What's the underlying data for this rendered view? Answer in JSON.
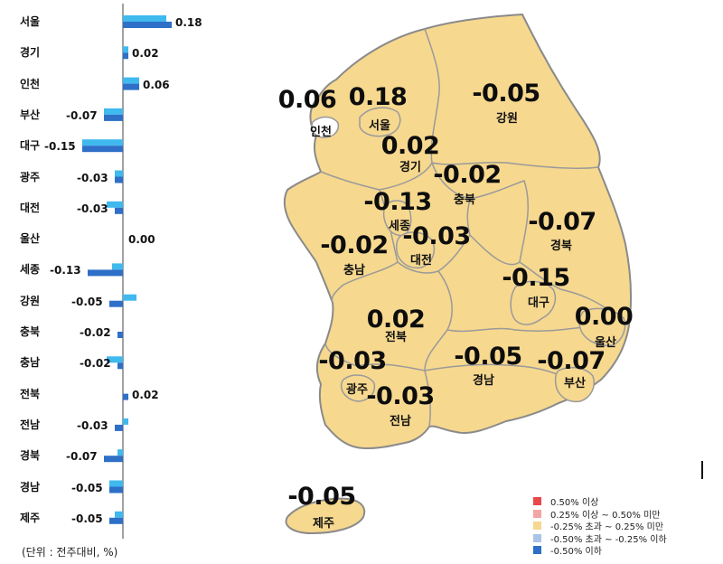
{
  "chart_data": [
    {
      "type": "bar",
      "orientation": "horizontal",
      "categories": [
        "서울",
        "경기",
        "인천",
        "부산",
        "대구",
        "광주",
        "대전",
        "울산",
        "세종",
        "강원",
        "충북",
        "충남",
        "전북",
        "전남",
        "경북",
        "경남",
        "제주"
      ],
      "series": [
        {
          "values": [
            0.16,
            0.02,
            0.06,
            -0.07,
            -0.15,
            -0.03,
            -0.06,
            0.0,
            -0.04,
            0.05,
            0.0,
            -0.06,
            0.0,
            0.02,
            -0.02,
            -0.05,
            -0.03
          ]
        },
        {
          "values": [
            0.18,
            0.02,
            0.06,
            -0.07,
            -0.15,
            -0.03,
            -0.03,
            0.0,
            -0.13,
            -0.05,
            -0.02,
            -0.02,
            0.02,
            -0.03,
            -0.07,
            -0.05,
            -0.05
          ]
        }
      ],
      "data_labels": [
        "0.18",
        "0.02",
        "0.06",
        "-0.07",
        "-0.15",
        "-0.03",
        "-0.03",
        "0.00",
        "-0.13",
        "-0.05",
        "-0.02",
        "-0.02",
        "0.02",
        "-0.03",
        "-0.07",
        "-0.05",
        "-0.05"
      ],
      "colors": {
        "previous_week": "#3fb9ee",
        "current_week": "#2e6fc7"
      },
      "note": "(단위 : 전주대비, %)"
    },
    {
      "type": "map",
      "regions": [
        {
          "name": "인천",
          "value": "0.06"
        },
        {
          "name": "서울",
          "value": "0.18"
        },
        {
          "name": "강원",
          "value": "-0.05"
        },
        {
          "name": "경기",
          "value": "0.02"
        },
        {
          "name": "충북",
          "value": "-0.02"
        },
        {
          "name": "세종",
          "value": "-0.13"
        },
        {
          "name": "경북",
          "value": "-0.07"
        },
        {
          "name": "충남",
          "value": "-0.02"
        },
        {
          "name": "대전",
          "value": "-0.03"
        },
        {
          "name": "대구",
          "value": "-0.15"
        },
        {
          "name": "전북",
          "value": "0.02"
        },
        {
          "name": "울산",
          "value": "0.00"
        },
        {
          "name": "광주",
          "value": "-0.03"
        },
        {
          "name": "경남",
          "value": "-0.05"
        },
        {
          "name": "부산",
          "value": "-0.07"
        },
        {
          "name": "전남",
          "value": "-0.03"
        },
        {
          "name": "제주",
          "value": "-0.05"
        }
      ],
      "fill_color": "#f6d88f",
      "border_color": "#8a8a8a",
      "legend": [
        {
          "label": "0.50% 이상",
          "color": "#e8474c"
        },
        {
          "label": "0.25% 이상 ~ 0.50% 미만",
          "color": "#f2a6a3"
        },
        {
          "label": "-0.25% 초과 ~ 0.25% 미만",
          "color": "#f6d88f"
        },
        {
          "label": "-0.50% 초과 ~ -0.25% 이하",
          "color": "#a9c4e6"
        },
        {
          "label": "-0.50% 이하",
          "color": "#2e6fc7"
        }
      ]
    }
  ]
}
